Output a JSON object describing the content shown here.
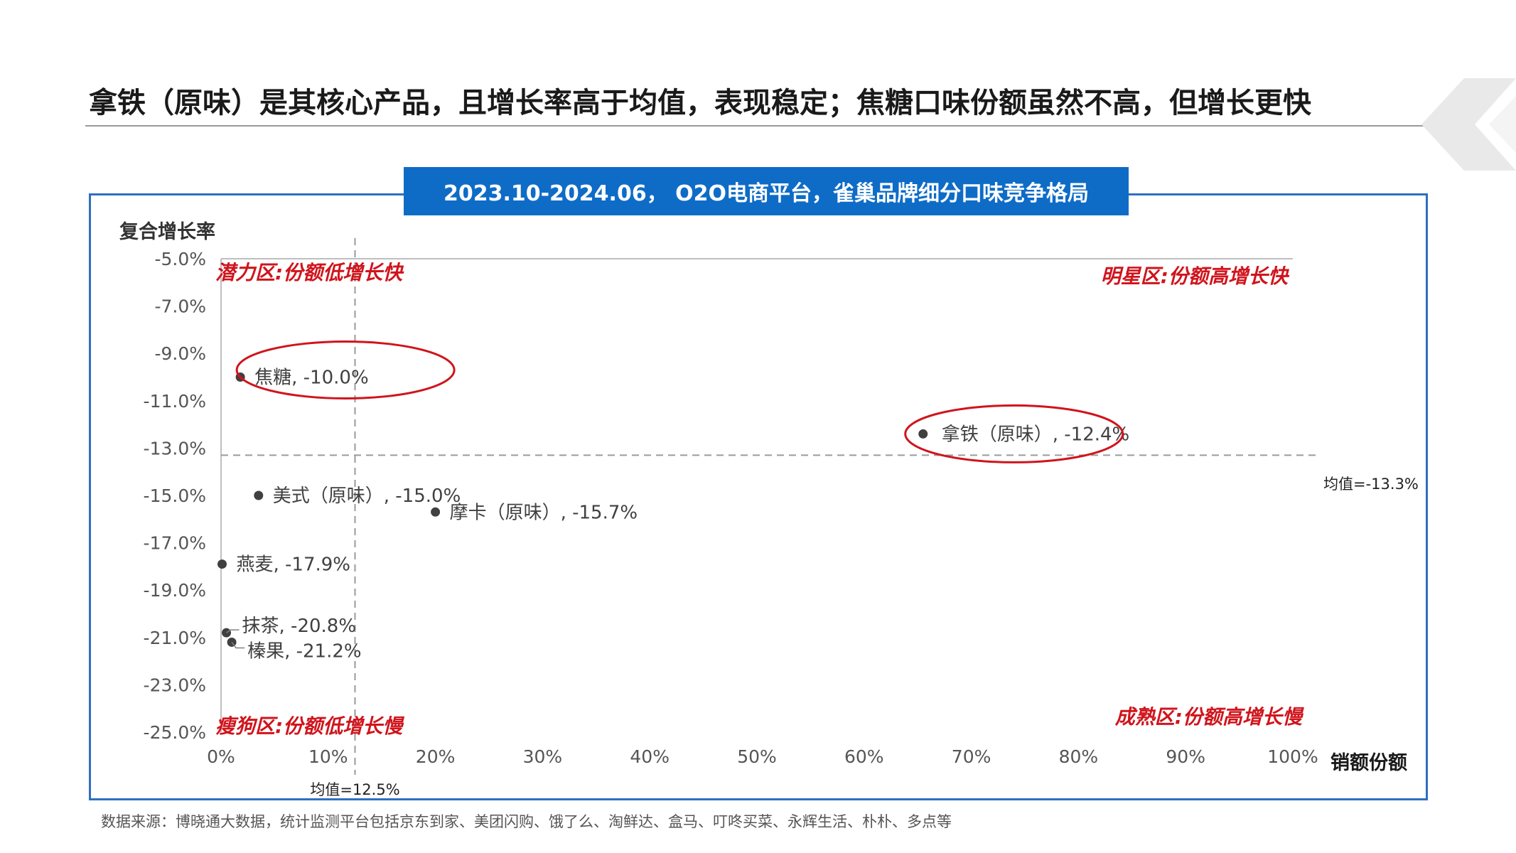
{
  "page": {
    "title": "拿铁（原味）是其核心产品，且增长率高于均值，表现稳定；焦糖口味份额虽然不高，但增长更快",
    "banner": "2023.10-2024.06， O2O电商平台，雀巢品牌细分口味竞争格局",
    "source": "数据来源：博晓通大数据，统计监测平台包括京东到家、美团闪购、饿了么、淘鲜达、盒马、叮咚买菜、永辉生活、朴朴、多点等",
    "accent_color": "#0e6cc7",
    "frame_color": "#2f6fc0",
    "logo_icon": "logo-chevron-icon"
  },
  "chart_data": {
    "type": "scatter",
    "xlabel": "销额份额",
    "ylabel": "复合增长率",
    "xlim": [
      0,
      100
    ],
    "ylim": [
      -25,
      -5
    ],
    "xticks": [
      "0%",
      "10%",
      "20%",
      "30%",
      "40%",
      "50%",
      "60%",
      "70%",
      "80%",
      "90%",
      "100%"
    ],
    "yticks": [
      "-5.0%",
      "-7.0%",
      "-9.0%",
      "-11.0%",
      "-13.0%",
      "-15.0%",
      "-17.0%",
      "-19.0%",
      "-21.0%",
      "-23.0%",
      "-25.0%"
    ],
    "points": [
      {
        "label": "焦糖, -10.0%",
        "x": 1.8,
        "y": -10.0,
        "highlight": true
      },
      {
        "label": "拿铁（原味）, -12.4%",
        "x": 65.5,
        "y": -12.4,
        "highlight": true
      },
      {
        "label": "美式（原味）, -15.0%",
        "x": 3.5,
        "y": -15.0,
        "highlight": false
      },
      {
        "label": "摩卡（原味）, -15.7%",
        "x": 20.0,
        "y": -15.7,
        "highlight": false
      },
      {
        "label": "燕麦, -17.9%",
        "x": 0.1,
        "y": -17.9,
        "highlight": false
      },
      {
        "label": "抹茶, -20.8%",
        "x": 0.5,
        "y": -20.8,
        "highlight": false
      },
      {
        "label": "榛果, -21.2%",
        "x": 1.0,
        "y": -21.2,
        "highlight": false
      }
    ],
    "reference_lines": {
      "x_mean": 12.5,
      "x_mean_label": "均值=12.5%",
      "y_mean": -13.3,
      "y_mean_label": "均值=-13.3%"
    },
    "quadrants": {
      "top_left": "潜力区:份额低增长快",
      "top_right": "明星区:份额高增长快",
      "bottom_left": "瘦狗区:份额低增长慢",
      "bottom_right": "成熟区:份额高增长慢"
    },
    "quadrant_color": "#d0141c",
    "highlight_color": "#d0141c",
    "point_color": "#404040"
  }
}
